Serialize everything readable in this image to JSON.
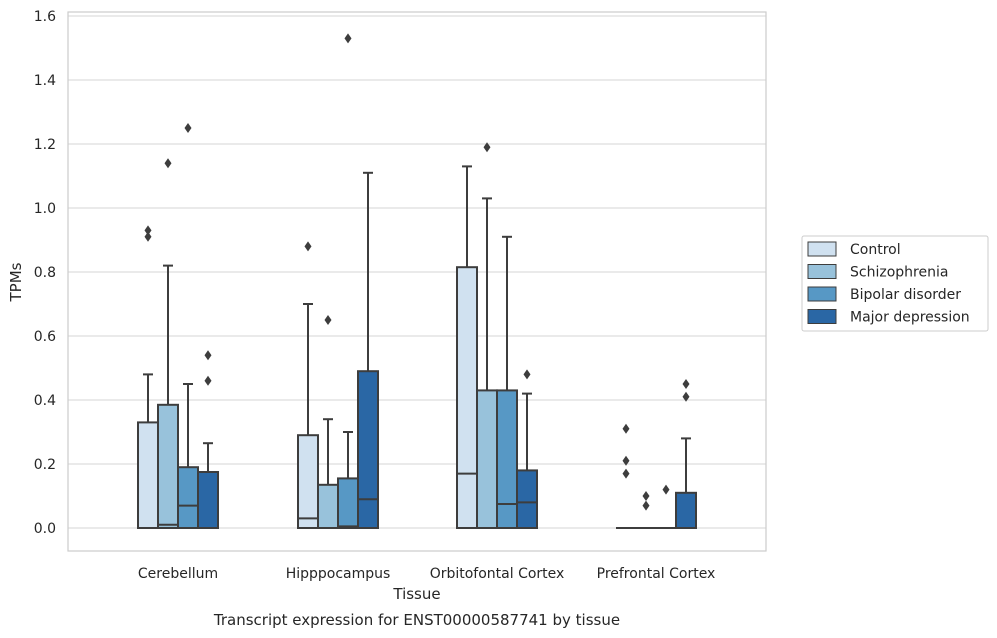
{
  "chart_data": {
    "type": "box",
    "xlabel": "Tissue",
    "ylabel": "TPMs",
    "caption": "Transcript expression for ENST00000587741 by tissue",
    "ylim": [
      -0.07,
      1.61
    ],
    "yticks": [
      "0.0",
      "0.2",
      "0.4",
      "0.6",
      "0.8",
      "1.0",
      "1.2",
      "1.4",
      "1.6"
    ],
    "grid": true,
    "legend_position": "right",
    "categories": [
      "Cerebellum",
      "Hipppocampus",
      "Orbitofontal Cortex",
      "Prefrontal Cortex"
    ],
    "series": [
      {
        "name": "Control",
        "color": "#d0e1f0",
        "boxes": [
          {
            "q1": 0.0,
            "median": 0.0,
            "q3": 0.33,
            "whislo": 0.0,
            "whishi": 0.48,
            "fliers": [
              0.91,
              0.93
            ]
          },
          {
            "q1": 0.0,
            "median": 0.03,
            "q3": 0.29,
            "whislo": 0.0,
            "whishi": 0.7,
            "fliers": [
              0.88
            ]
          },
          {
            "q1": 0.0,
            "median": 0.17,
            "q3": 0.815,
            "whislo": 0.0,
            "whishi": 1.13,
            "fliers": []
          },
          {
            "q1": 0.0,
            "median": 0.0,
            "q3": 0.0,
            "whislo": 0.0,
            "whishi": 0.0,
            "fliers": [
              0.17,
              0.21,
              0.31
            ]
          }
        ]
      },
      {
        "name": "Schizophrenia",
        "color": "#98c2db",
        "boxes": [
          {
            "q1": 0.0,
            "median": 0.01,
            "q3": 0.385,
            "whislo": 0.0,
            "whishi": 0.82,
            "fliers": [
              1.14
            ]
          },
          {
            "q1": 0.0,
            "median": 0.0,
            "q3": 0.135,
            "whislo": 0.0,
            "whishi": 0.34,
            "fliers": [
              0.65
            ]
          },
          {
            "q1": 0.0,
            "median": 0.0,
            "q3": 0.43,
            "whislo": 0.0,
            "whishi": 1.03,
            "fliers": [
              1.19
            ]
          },
          {
            "q1": 0.0,
            "median": 0.0,
            "q3": 0.0,
            "whislo": 0.0,
            "whishi": 0.0,
            "fliers": [
              0.07,
              0.1
            ]
          }
        ]
      },
      {
        "name": "Bipolar disorder",
        "color": "#5798c5",
        "boxes": [
          {
            "q1": 0.0,
            "median": 0.07,
            "q3": 0.19,
            "whislo": 0.0,
            "whishi": 0.45,
            "fliers": [
              1.25
            ]
          },
          {
            "q1": 0.0,
            "median": 0.005,
            "q3": 0.155,
            "whislo": 0.0,
            "whishi": 0.3,
            "fliers": [
              1.53
            ]
          },
          {
            "q1": 0.0,
            "median": 0.075,
            "q3": 0.43,
            "whislo": 0.0,
            "whishi": 0.91,
            "fliers": []
          },
          {
            "q1": 0.0,
            "median": 0.0,
            "q3": 0.0,
            "whislo": 0.0,
            "whishi": 0.0,
            "fliers": [
              0.12
            ]
          }
        ]
      },
      {
        "name": "Major depression",
        "color": "#2a67a5",
        "boxes": [
          {
            "q1": 0.0,
            "median": 0.0,
            "q3": 0.175,
            "whislo": 0.0,
            "whishi": 0.265,
            "fliers": [
              0.46,
              0.54
            ]
          },
          {
            "q1": 0.0,
            "median": 0.09,
            "q3": 0.49,
            "whislo": 0.0,
            "whishi": 1.11,
            "fliers": []
          },
          {
            "q1": 0.0,
            "median": 0.08,
            "q3": 0.18,
            "whislo": 0.0,
            "whishi": 0.42,
            "fliers": [
              0.48
            ]
          },
          {
            "q1": 0.0,
            "median": 0.0,
            "q3": 0.11,
            "whislo": 0.0,
            "whishi": 0.28,
            "fliers": [
              0.41,
              0.45
            ]
          }
        ]
      }
    ]
  }
}
